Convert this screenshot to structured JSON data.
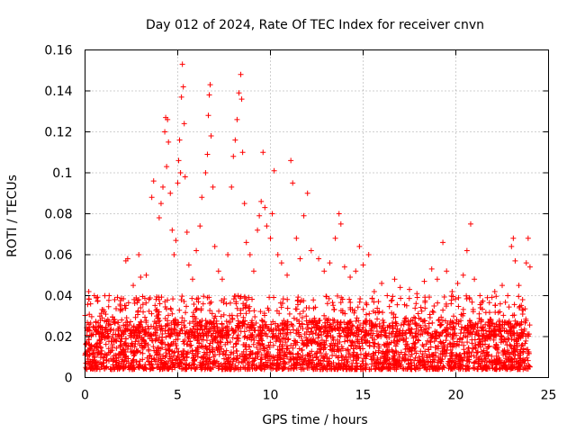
{
  "chart_data": {
    "type": "scatter",
    "title": "Day 012 of 2024, Rate Of TEC Index for receiver cnvn",
    "xlabel": "GPS time / hours",
    "ylabel": "ROTI / TECUs",
    "xlim": [
      0,
      25
    ],
    "ylim": [
      0,
      0.16
    ],
    "x_ticks": [
      0,
      5,
      10,
      15,
      20,
      25
    ],
    "x_tick_labels": [
      "0",
      "5",
      "10",
      "15",
      "20",
      "25"
    ],
    "y_ticks": [
      0,
      0.02,
      0.04,
      0.06,
      0.08,
      0.1,
      0.12,
      0.14,
      0.16
    ],
    "y_tick_labels": [
      "0",
      "0.02",
      "0.04",
      "0.06",
      "0.08",
      "0.1",
      "0.12",
      "0.14",
      "0.16"
    ],
    "grid": true,
    "marker": "+",
    "color": "#ff0000",
    "series": [
      {
        "name": "ROTI",
        "background_band": {
          "x_range": [
            0,
            24
          ],
          "typical_min": 0.004,
          "typical_max": 0.028
        },
        "points": [
          [
            0.2,
            0.042
          ],
          [
            0.3,
            0.036
          ],
          [
            0.5,
            0.04
          ],
          [
            0.8,
            0.03
          ],
          [
            1.0,
            0.033
          ],
          [
            1.3,
            0.04
          ],
          [
            1.6,
            0.038
          ],
          [
            1.9,
            0.035
          ],
          [
            2.2,
            0.057
          ],
          [
            2.3,
            0.058
          ],
          [
            2.6,
            0.045
          ],
          [
            2.9,
            0.06
          ],
          [
            3.0,
            0.049
          ],
          [
            3.3,
            0.05
          ],
          [
            3.6,
            0.088
          ],
          [
            3.7,
            0.096
          ],
          [
            4.0,
            0.078
          ],
          [
            4.1,
            0.085
          ],
          [
            4.2,
            0.093
          ],
          [
            4.3,
            0.12
          ],
          [
            4.35,
            0.127
          ],
          [
            4.4,
            0.103
          ],
          [
            4.45,
            0.126
          ],
          [
            4.5,
            0.115
          ],
          [
            4.6,
            0.09
          ],
          [
            4.7,
            0.072
          ],
          [
            4.8,
            0.06
          ],
          [
            4.9,
            0.067
          ],
          [
            5.0,
            0.095
          ],
          [
            5.05,
            0.106
          ],
          [
            5.1,
            0.116
          ],
          [
            5.15,
            0.1
          ],
          [
            5.2,
            0.137
          ],
          [
            5.25,
            0.153
          ],
          [
            5.3,
            0.142
          ],
          [
            5.35,
            0.124
          ],
          [
            5.4,
            0.098
          ],
          [
            5.5,
            0.071
          ],
          [
            5.6,
            0.055
          ],
          [
            5.8,
            0.048
          ],
          [
            6.0,
            0.062
          ],
          [
            6.2,
            0.074
          ],
          [
            6.3,
            0.088
          ],
          [
            6.5,
            0.1
          ],
          [
            6.6,
            0.109
          ],
          [
            6.65,
            0.128
          ],
          [
            6.7,
            0.138
          ],
          [
            6.75,
            0.143
          ],
          [
            6.8,
            0.118
          ],
          [
            6.9,
            0.093
          ],
          [
            7.0,
            0.064
          ],
          [
            7.2,
            0.052
          ],
          [
            7.4,
            0.048
          ],
          [
            7.7,
            0.06
          ],
          [
            7.9,
            0.093
          ],
          [
            8.0,
            0.108
          ],
          [
            8.1,
            0.116
          ],
          [
            8.2,
            0.126
          ],
          [
            8.3,
            0.139
          ],
          [
            8.4,
            0.148
          ],
          [
            8.45,
            0.136
          ],
          [
            8.5,
            0.11
          ],
          [
            8.6,
            0.085
          ],
          [
            8.7,
            0.066
          ],
          [
            8.9,
            0.06
          ],
          [
            9.1,
            0.052
          ],
          [
            9.3,
            0.072
          ],
          [
            9.4,
            0.079
          ],
          [
            9.5,
            0.086
          ],
          [
            9.6,
            0.11
          ],
          [
            9.7,
            0.083
          ],
          [
            9.8,
            0.074
          ],
          [
            10.0,
            0.068
          ],
          [
            10.1,
            0.08
          ],
          [
            10.2,
            0.101
          ],
          [
            10.4,
            0.06
          ],
          [
            10.6,
            0.056
          ],
          [
            10.9,
            0.05
          ],
          [
            11.1,
            0.106
          ],
          [
            11.2,
            0.095
          ],
          [
            11.4,
            0.068
          ],
          [
            11.6,
            0.058
          ],
          [
            11.8,
            0.079
          ],
          [
            12.0,
            0.09
          ],
          [
            12.2,
            0.062
          ],
          [
            12.6,
            0.058
          ],
          [
            12.9,
            0.052
          ],
          [
            13.2,
            0.056
          ],
          [
            13.5,
            0.068
          ],
          [
            13.7,
            0.08
          ],
          [
            13.8,
            0.075
          ],
          [
            14.0,
            0.054
          ],
          [
            14.3,
            0.049
          ],
          [
            14.6,
            0.052
          ],
          [
            14.8,
            0.064
          ],
          [
            15.0,
            0.055
          ],
          [
            15.3,
            0.06
          ],
          [
            15.6,
            0.042
          ],
          [
            16.0,
            0.046
          ],
          [
            16.3,
            0.04
          ],
          [
            16.7,
            0.048
          ],
          [
            17.0,
            0.044
          ],
          [
            17.5,
            0.043
          ],
          [
            17.9,
            0.041
          ],
          [
            18.3,
            0.047
          ],
          [
            18.7,
            0.053
          ],
          [
            19.0,
            0.048
          ],
          [
            19.3,
            0.066
          ],
          [
            19.5,
            0.052
          ],
          [
            19.8,
            0.042
          ],
          [
            20.1,
            0.046
          ],
          [
            20.4,
            0.05
          ],
          [
            20.6,
            0.062
          ],
          [
            20.8,
            0.075
          ],
          [
            21.0,
            0.048
          ],
          [
            21.3,
            0.04
          ],
          [
            21.7,
            0.039
          ],
          [
            22.1,
            0.042
          ],
          [
            22.5,
            0.045
          ],
          [
            22.8,
            0.04
          ],
          [
            23.0,
            0.064
          ],
          [
            23.1,
            0.068
          ],
          [
            23.2,
            0.057
          ],
          [
            23.4,
            0.045
          ],
          [
            23.6,
            0.038
          ],
          [
            23.8,
            0.056
          ],
          [
            23.9,
            0.068
          ],
          [
            24.0,
            0.054
          ]
        ]
      }
    ]
  }
}
